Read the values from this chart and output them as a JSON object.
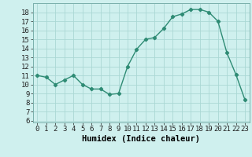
{
  "x": [
    0,
    1,
    2,
    3,
    4,
    5,
    6,
    7,
    8,
    9,
    10,
    11,
    12,
    13,
    14,
    15,
    16,
    17,
    18,
    19,
    20,
    21,
    22,
    23
  ],
  "y": [
    11,
    10.8,
    10,
    10.5,
    11,
    10,
    9.5,
    9.5,
    8.9,
    9.0,
    12,
    13.9,
    15,
    15.2,
    16.2,
    17.5,
    17.8,
    18.3,
    18.3,
    18.0,
    17.0,
    13.5,
    11.1,
    8.3
  ],
  "line_color": "#2e8b74",
  "marker": "D",
  "marker_size": 2.2,
  "xlabel": "Humidex (Indice chaleur)",
  "ylabel_ticks": [
    6,
    7,
    8,
    9,
    10,
    11,
    12,
    13,
    14,
    15,
    16,
    17,
    18
  ],
  "ylim": [
    5.8,
    19.0
  ],
  "xlim": [
    -0.5,
    23.5
  ],
  "bg_color": "#cff0ee",
  "grid_color": "#aad8d4",
  "xlabel_fontsize": 7.5,
  "tick_fontsize": 6.5,
  "xlabel_fontweight": "bold"
}
